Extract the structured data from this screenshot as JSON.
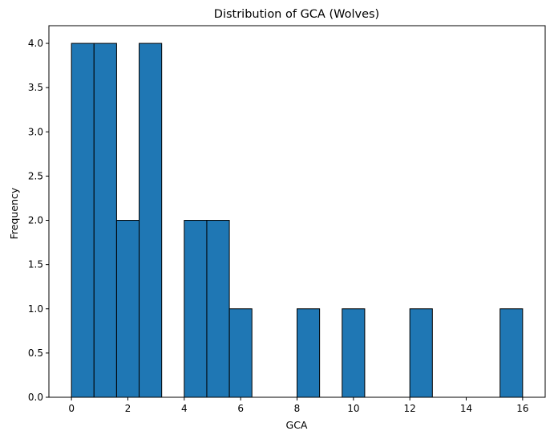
{
  "chart_data": {
    "type": "bar",
    "title": "Distribution of GCA (Wolves)",
    "xlabel": "GCA",
    "ylabel": "Frequency",
    "xlim": [
      -0.8,
      16.8
    ],
    "ylim": [
      0,
      4.2
    ],
    "bins": [
      {
        "start": 0.0,
        "end": 0.8,
        "count": 4
      },
      {
        "start": 0.8,
        "end": 1.6,
        "count": 4
      },
      {
        "start": 1.6,
        "end": 2.4,
        "count": 2
      },
      {
        "start": 2.4,
        "end": 3.2,
        "count": 4
      },
      {
        "start": 3.2,
        "end": 4.0,
        "count": 0
      },
      {
        "start": 4.0,
        "end": 4.8,
        "count": 2
      },
      {
        "start": 4.8,
        "end": 5.6,
        "count": 2
      },
      {
        "start": 5.6,
        "end": 6.4,
        "count": 1
      },
      {
        "start": 6.4,
        "end": 7.2,
        "count": 0
      },
      {
        "start": 7.2,
        "end": 8.0,
        "count": 0
      },
      {
        "start": 8.0,
        "end": 8.8,
        "count": 1
      },
      {
        "start": 8.8,
        "end": 9.6,
        "count": 0
      },
      {
        "start": 9.6,
        "end": 10.4,
        "count": 1
      },
      {
        "start": 10.4,
        "end": 11.2,
        "count": 0
      },
      {
        "start": 11.2,
        "end": 12.0,
        "count": 0
      },
      {
        "start": 12.0,
        "end": 12.8,
        "count": 1
      },
      {
        "start": 12.8,
        "end": 13.6,
        "count": 0
      },
      {
        "start": 13.6,
        "end": 14.4,
        "count": 0
      },
      {
        "start": 14.4,
        "end": 15.2,
        "count": 0
      },
      {
        "start": 15.2,
        "end": 16.0,
        "count": 1
      }
    ],
    "x_ticks": [
      0,
      2,
      4,
      6,
      8,
      10,
      12,
      14,
      16
    ],
    "x_tick_labels": [
      "0",
      "2",
      "4",
      "6",
      "8",
      "10",
      "12",
      "14",
      "16"
    ],
    "y_ticks": [
      0,
      0.5,
      1,
      1.5,
      2,
      2.5,
      3,
      3.5,
      4
    ],
    "y_tick_labels": [
      "0.0",
      "0.5",
      "1.0",
      "1.5",
      "2.0",
      "2.5",
      "3.0",
      "3.5",
      "4.0"
    ],
    "grid": false,
    "colors": {
      "bar_fill": "#1f77b4",
      "bar_edge": "#000000"
    }
  }
}
